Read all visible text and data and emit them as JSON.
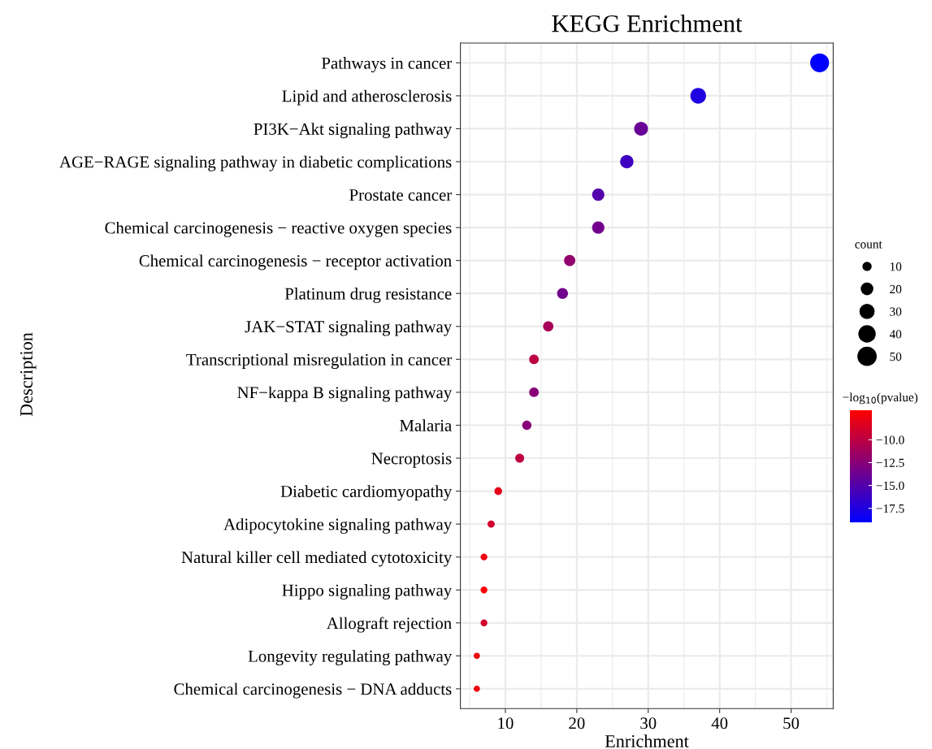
{
  "chart_data": {
    "type": "bubble",
    "title": "KEGG Enrichment",
    "xlabel": "Enrichment",
    "ylabel": "Description",
    "categories": [
      "Pathways in cancer",
      "Lipid and atherosclerosis",
      "PI3K−Akt signaling pathway",
      "AGE−RAGE signaling pathway in diabetic complications",
      "Prostate cancer",
      "Chemical carcinogenesis − reactive oxygen species",
      "Chemical carcinogenesis − receptor activation",
      "Platinum drug resistance",
      "JAK−STAT signaling pathway",
      "Transcriptional misregulation in cancer",
      "NF−kappa B signaling pathway",
      "Malaria",
      "Necroptosis",
      "Diabetic cardiomyopathy",
      "Adipocytokine signaling pathway",
      "Natural killer cell mediated cytotoxicity",
      "Hippo signaling pathway",
      "Allograft rejection",
      "Longevity regulating pathway",
      "Chemical carcinogenesis − DNA adducts"
    ],
    "values": [
      54,
      37,
      29,
      27,
      23,
      23,
      19,
      18,
      16,
      14,
      14,
      13,
      12,
      9,
      8,
      7,
      7,
      7,
      6,
      6
    ],
    "sizes": [
      54,
      37,
      29,
      27,
      23,
      23,
      19,
      18,
      16,
      14,
      14,
      13,
      12,
      9,
      8,
      7,
      7,
      7,
      6,
      6
    ],
    "cvalues": [
      -19,
      -17.5,
      -14,
      -16,
      -15,
      -13.5,
      -12,
      -13.5,
      -11,
      -10,
      -12.5,
      -12.5,
      -10,
      -8,
      -9,
      -7.5,
      -7,
      -9,
      -7.5,
      -7.5
    ],
    "orientation": "horizontal",
    "xlim": [
      3.7,
      55.9
    ],
    "xticks": [
      10,
      20,
      30,
      40,
      50
    ],
    "size_legend": [
      10,
      20,
      30,
      40,
      50
    ],
    "legend_title": "count",
    "clabel": "−log$_{10}$(pvalue)",
    "clim": [
      -19,
      -6.8
    ],
    "cticks": [
      {
        "value": -10,
        "label": "−10.0"
      },
      {
        "value": -12.5,
        "label": "−12.5"
      },
      {
        "value": -15,
        "label": "−15.0"
      },
      {
        "value": -17.5,
        "label": "−17.5"
      }
    ],
    "grid": true,
    "marker": "circle"
  }
}
